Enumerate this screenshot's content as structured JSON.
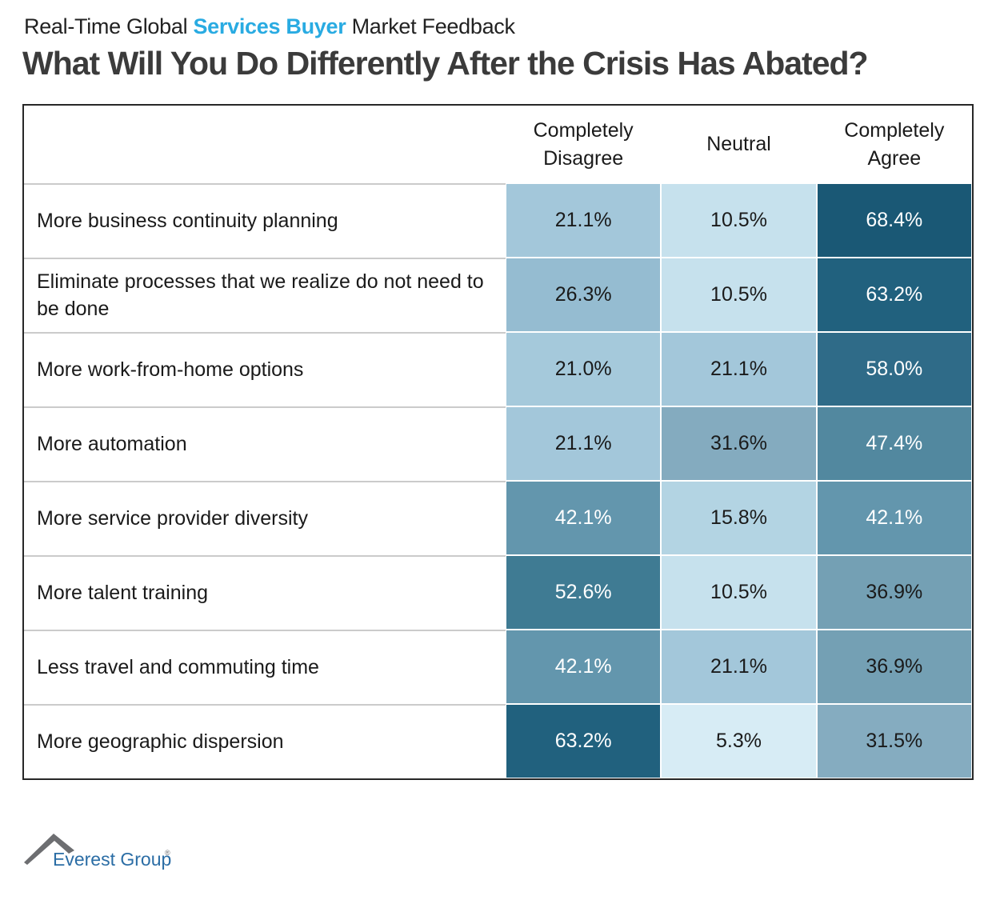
{
  "eyebrow": {
    "prefix": "Real-Time Global ",
    "highlight": "Services Buyer",
    "suffix": " Market Feedback"
  },
  "title": "What Will You Do Differently After the Crisis Has Abated?",
  "chart_data": {
    "type": "heatmap",
    "title": "What Will You Do Differently After the Crisis Has Abated?",
    "subtitle": "Real-Time Global Services Buyer Market Feedback",
    "columns": [
      "Completely Disagree",
      "Neutral",
      "Completely Agree"
    ],
    "unit": "%",
    "rows": [
      {
        "label": "More business continuity planning",
        "values": [
          21.1,
          10.5,
          68.4
        ]
      },
      {
        "label": "Eliminate processes that we realize do not need to be done",
        "values": [
          26.3,
          10.5,
          63.2
        ]
      },
      {
        "label": "More work-from-home options",
        "values": [
          21.0,
          21.1,
          58.0
        ]
      },
      {
        "label": "More automation",
        "values": [
          21.1,
          31.6,
          47.4
        ]
      },
      {
        "label": "More service provider diversity",
        "values": [
          42.1,
          15.8,
          42.1
        ]
      },
      {
        "label": "More talent training",
        "values": [
          52.6,
          10.5,
          36.9
        ]
      },
      {
        "label": "Less travel and commuting time",
        "values": [
          42.1,
          21.1,
          36.9
        ]
      },
      {
        "label": "More geographic dispersion",
        "values": [
          63.2,
          5.3,
          31.5
        ]
      }
    ],
    "value_labels": [
      [
        "21.1%",
        "10.5%",
        "68.4%"
      ],
      [
        "26.3%",
        "10.5%",
        "63.2%"
      ],
      [
        "21.0%",
        "21.1%",
        "58.0%"
      ],
      [
        "21.1%",
        "31.6%",
        "47.4%"
      ],
      [
        "42.1%",
        "15.8%",
        "42.1%"
      ],
      [
        "52.6%",
        "10.5%",
        "36.9%"
      ],
      [
        "42.1%",
        "21.1%",
        "36.9%"
      ],
      [
        "63.2%",
        "5.3%",
        "31.5%"
      ]
    ],
    "cell_colors": [
      [
        "#A3C7DA",
        "#C6E1ED",
        "#1A5875"
      ],
      [
        "#95BCD1",
        "#C6E1ED",
        "#21617E"
      ],
      [
        "#A5C9DB",
        "#A3C7DA",
        "#2F6B88"
      ],
      [
        "#A3C7DA",
        "#84ABBF",
        "#52889F"
      ],
      [
        "#6396AD",
        "#B3D4E3",
        "#6396AD"
      ],
      [
        "#3F7B93",
        "#C6E1ED",
        "#74A0B4"
      ],
      [
        "#6396AD",
        "#A3C7DA",
        "#74A0B4"
      ],
      [
        "#21617E",
        "#D7ECF5",
        "#85ACC0"
      ]
    ],
    "legend_position": "none",
    "grid": "white gridlines between cells"
  },
  "footer": {
    "logo_text": "Everest Group",
    "registered_mark": "®"
  },
  "theme": {
    "highlight_blue": "#29ABE2",
    "title_color": "#3B3B3B",
    "table_border": "#272727",
    "row_divider": "#CBCBCB",
    "dark_text": "#1A1A1A",
    "light_text": "#FFFFFF",
    "logo_blue": "#2B6DA5",
    "logo_gray": "#6D6E71"
  }
}
